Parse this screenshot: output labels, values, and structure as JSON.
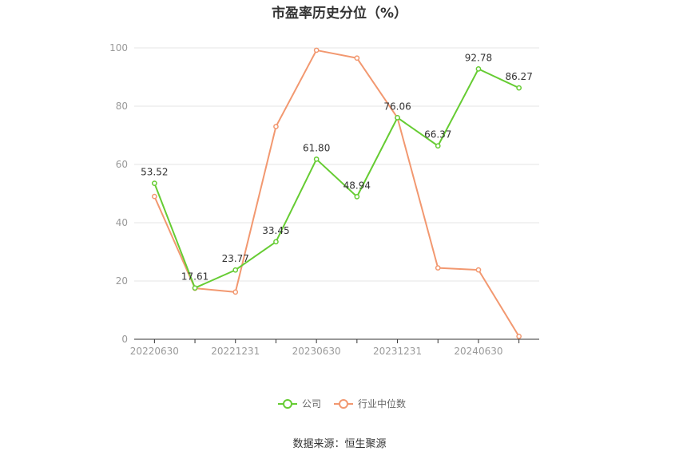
{
  "chart_data": {
    "type": "line",
    "title": "市盈率历史分位（%）",
    "x": [
      "20220630",
      "20220930",
      "20221231",
      "20230331",
      "20230630",
      "20230930",
      "20231231",
      "20240331",
      "20240630",
      "20240930"
    ],
    "x_tick_labels": [
      "20220630",
      "20221231",
      "20230630",
      "20231231",
      "20240630"
    ],
    "y_ticks": [
      "0",
      "20",
      "40",
      "60",
      "80",
      "100"
    ],
    "ylim": [
      0,
      100
    ],
    "grid": true,
    "legend_position": "bottom",
    "series": [
      {
        "name": "公司",
        "color": "#66cc33",
        "values": [
          53.52,
          17.61,
          23.77,
          33.45,
          61.8,
          48.94,
          76.06,
          66.37,
          92.78,
          86.27
        ],
        "labels": [
          "53.52",
          "17.61",
          "23.77",
          "33.45",
          "61.80",
          "48.94",
          "76.06",
          "66.37",
          "92.78",
          "86.27"
        ]
      },
      {
        "name": "行业中位数",
        "color": "#f29870",
        "values": [
          49.0,
          17.5,
          16.2,
          73.0,
          99.2,
          96.5,
          76.0,
          24.5,
          23.8,
          1.0
        ]
      }
    ]
  },
  "footer": {
    "source": "数据来源：恒生聚源"
  }
}
